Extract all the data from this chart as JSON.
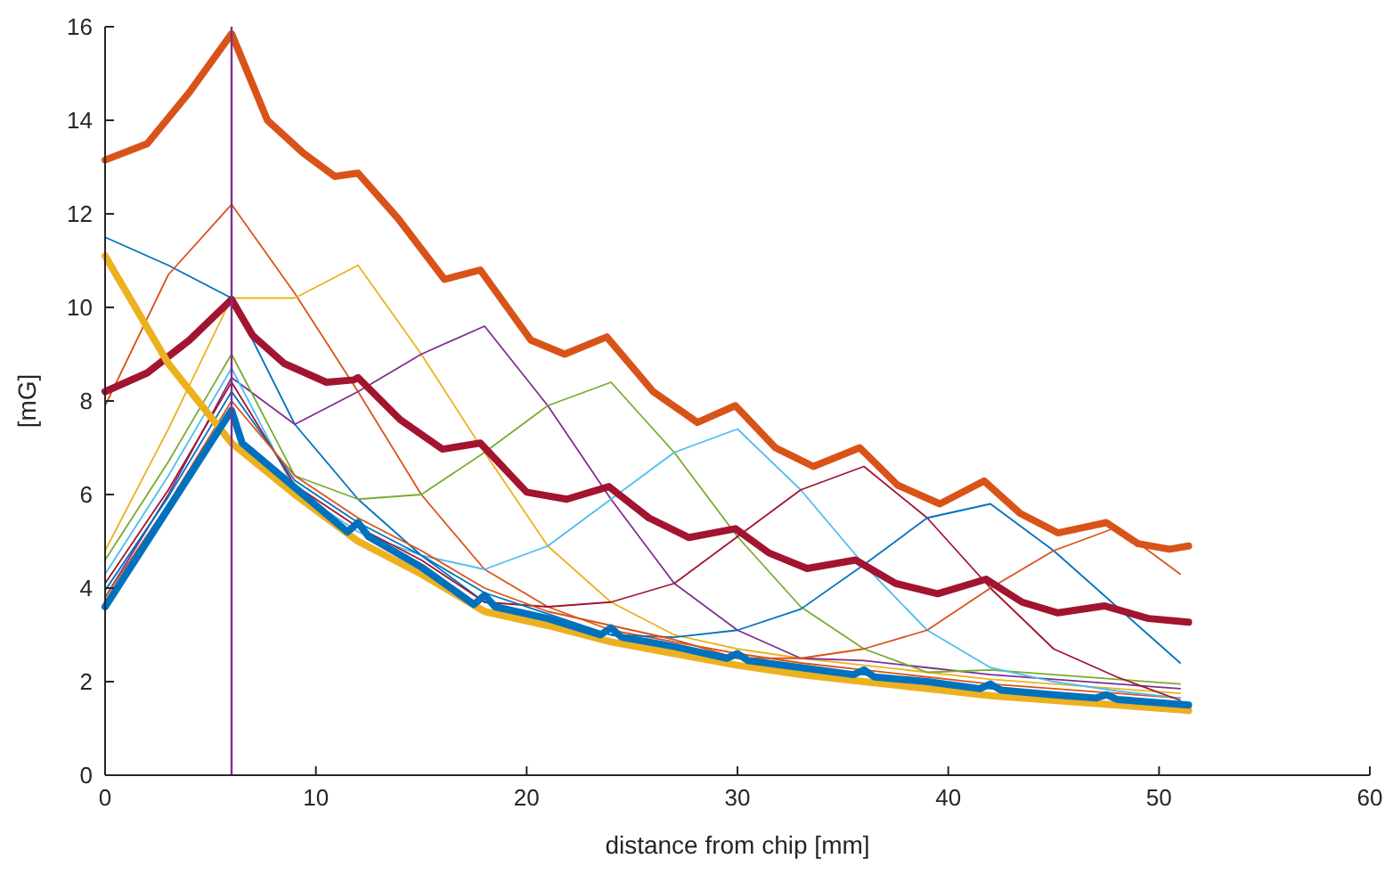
{
  "chart_data": {
    "type": "line",
    "xlabel": "distance from chip [mm]",
    "ylabel": "[mG]",
    "xlim": [
      0,
      60
    ],
    "xticks": [
      0,
      10,
      20,
      30,
      40,
      50,
      60
    ],
    "ylim": [
      0,
      16
    ],
    "yticks": [
      0,
      2,
      4,
      6,
      8,
      10,
      12,
      14,
      16
    ],
    "grid": false,
    "marker": "none",
    "line_style": "solid",
    "ref_lines": [
      {
        "axis": "x",
        "value": 6,
        "color": "#7e2f8e"
      }
    ],
    "x": [
      0,
      3,
      6,
      9,
      12,
      15,
      18,
      21,
      24,
      27,
      30,
      33,
      36,
      39,
      42,
      45,
      48,
      51
    ],
    "series": [
      {
        "color": "#0072bd",
        "values": [
          11.5,
          10.9,
          10.2,
          7.5,
          5.9,
          4.7,
          3.7,
          3.35,
          3.0,
          2.75,
          2.5,
          2.3,
          2.15,
          2.0,
          1.85,
          1.75,
          1.65,
          1.55
        ]
      },
      {
        "color": "#d95319",
        "values": [
          7.9,
          10.7,
          12.2,
          10.3,
          8.2,
          6.0,
          4.4,
          3.6,
          3.1,
          2.85,
          2.6,
          2.4,
          2.25,
          2.1,
          1.95,
          1.85,
          1.75,
          1.65
        ]
      },
      {
        "color": "#edb120",
        "values": [
          4.8,
          7.4,
          10.2,
          10.2,
          10.9,
          9.0,
          6.9,
          4.9,
          3.7,
          3.0,
          2.7,
          2.5,
          2.35,
          2.2,
          2.05,
          1.95,
          1.85,
          1.75
        ]
      },
      {
        "color": "#7e2f8e",
        "values": [
          3.8,
          6.0,
          8.5,
          7.5,
          8.2,
          9.0,
          9.6,
          7.9,
          5.9,
          4.1,
          3.1,
          2.5,
          2.45,
          2.3,
          2.15,
          2.05,
          1.95,
          1.85
        ]
      },
      {
        "color": "#77ac30",
        "values": [
          4.6,
          6.7,
          9.0,
          6.4,
          5.9,
          6.0,
          6.9,
          7.9,
          8.4,
          6.9,
          5.1,
          3.6,
          2.7,
          2.2,
          2.25,
          2.15,
          2.05,
          1.95
        ]
      },
      {
        "color": "#4dbeee",
        "values": [
          4.3,
          6.4,
          8.7,
          6.1,
          5.2,
          4.7,
          4.4,
          4.9,
          5.9,
          6.9,
          7.4,
          6.1,
          4.5,
          3.1,
          2.3,
          2.0,
          1.8,
          1.65
        ]
      },
      {
        "color": "#a2142f",
        "values": [
          4.1,
          6.1,
          8.4,
          6.2,
          5.3,
          4.6,
          3.7,
          3.6,
          3.7,
          4.1,
          5.1,
          6.1,
          6.6,
          5.5,
          4.0,
          2.7,
          2.1,
          1.6
        ]
      },
      {
        "color": "#0072bd",
        "values": [
          3.95,
          5.95,
          8.2,
          6.3,
          5.4,
          4.7,
          3.9,
          3.45,
          3.0,
          2.95,
          3.1,
          3.55,
          4.5,
          5.5,
          5.8,
          4.8,
          3.6,
          2.4
        ]
      },
      {
        "color": "#d95319",
        "values": [
          3.8,
          5.8,
          8.0,
          6.4,
          5.5,
          4.8,
          4.0,
          3.5,
          3.2,
          2.9,
          2.5,
          2.5,
          2.7,
          3.1,
          4.0,
          4.8,
          5.3,
          4.3
        ]
      },
      {
        "color": "#d95319",
        "x": [
          0,
          2,
          4,
          6,
          7.7,
          9.4,
          10.9,
          12,
          13.9,
          16.1,
          17.8,
          20.2,
          21.8,
          23.8,
          26,
          28.1,
          29.9,
          31.8,
          33.6,
          35.8,
          37.6,
          39.6,
          41.7,
          43.4,
          45.2,
          47.5,
          49,
          50.5,
          51.4
        ],
        "values": [
          13.15,
          13.5,
          14.6,
          15.85,
          14.0,
          13.3,
          12.8,
          12.87,
          11.9,
          10.6,
          10.8,
          9.3,
          9.0,
          9.37,
          8.2,
          7.54,
          7.9,
          7.0,
          6.6,
          7.0,
          6.2,
          5.8,
          6.29,
          5.6,
          5.18,
          5.4,
          4.95,
          4.83,
          4.9
        ]
      },
      {
        "color": "#a2142f",
        "x": [
          0,
          2,
          4,
          6,
          7,
          8.5,
          10.5,
          11.8,
          12,
          14,
          16,
          17.8,
          20,
          21.9,
          23.9,
          25.8,
          27.7,
          29.9,
          31.5,
          33.3,
          35.6,
          37.5,
          39.5,
          41.8,
          43.5,
          45.2,
          47.4,
          49.5,
          51.4
        ],
        "values": [
          8.2,
          8.6,
          9.3,
          10.17,
          9.4,
          8.8,
          8.4,
          8.45,
          8.5,
          7.6,
          6.97,
          7.1,
          6.05,
          5.9,
          6.17,
          5.5,
          5.08,
          5.27,
          4.75,
          4.42,
          4.6,
          4.1,
          3.88,
          4.19,
          3.7,
          3.47,
          3.62,
          3.35,
          3.27
        ]
      },
      {
        "color": "#edb120",
        "x": [
          0,
          3,
          6,
          9,
          12,
          15,
          18,
          21,
          24,
          27,
          30,
          33,
          36,
          39,
          42,
          45,
          48,
          51,
          51.4
        ],
        "values": [
          11.1,
          8.8,
          7.1,
          6.0,
          5.0,
          4.3,
          3.5,
          3.2,
          2.85,
          2.6,
          2.35,
          2.15,
          2.0,
          1.85,
          1.7,
          1.6,
          1.5,
          1.4,
          1.38
        ]
      },
      {
        "color": "#0072bd",
        "x": [
          0,
          6,
          6.5,
          9,
          11.5,
          12,
          12.5,
          15,
          17.5,
          18,
          18.5,
          21,
          23.5,
          24,
          24.5,
          27,
          29.5,
          30,
          30.5,
          33,
          35.5,
          36,
          36.5,
          39,
          41.5,
          42,
          42.5,
          45,
          47,
          47.5,
          48,
          51.4
        ],
        "values": [
          3.6,
          7.8,
          7.1,
          6.15,
          5.2,
          5.4,
          5.1,
          4.45,
          3.65,
          3.85,
          3.6,
          3.35,
          3.0,
          3.15,
          2.95,
          2.75,
          2.5,
          2.6,
          2.45,
          2.3,
          2.15,
          2.25,
          2.1,
          2.0,
          1.85,
          1.95,
          1.82,
          1.72,
          1.65,
          1.72,
          1.62,
          1.5
        ]
      }
    ]
  }
}
